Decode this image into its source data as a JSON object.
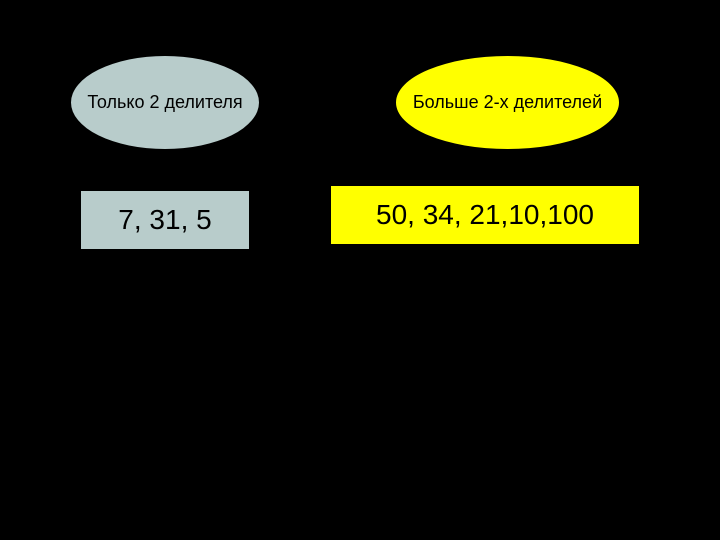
{
  "background_color": "#000000",
  "groups": [
    {
      "id": "two-divisors",
      "ellipse": {
        "text": "Только 2 делителя",
        "fill": "#b8cccb",
        "border": "#000000",
        "font_size": 18
      },
      "rect": {
        "text": "7, 31, 5",
        "fill": "#b8cccb",
        "border": "#000000",
        "font_size": 28
      }
    },
    {
      "id": "more-than-two-divisors",
      "ellipse": {
        "text": "Больше 2-х делителей",
        "fill": "#ffff00",
        "border": "#000000",
        "font_size": 18
      },
      "rect": {
        "text": "50, 34, 21,10,100",
        "fill": "#ffff00",
        "border": "#000000",
        "font_size": 28
      }
    }
  ]
}
